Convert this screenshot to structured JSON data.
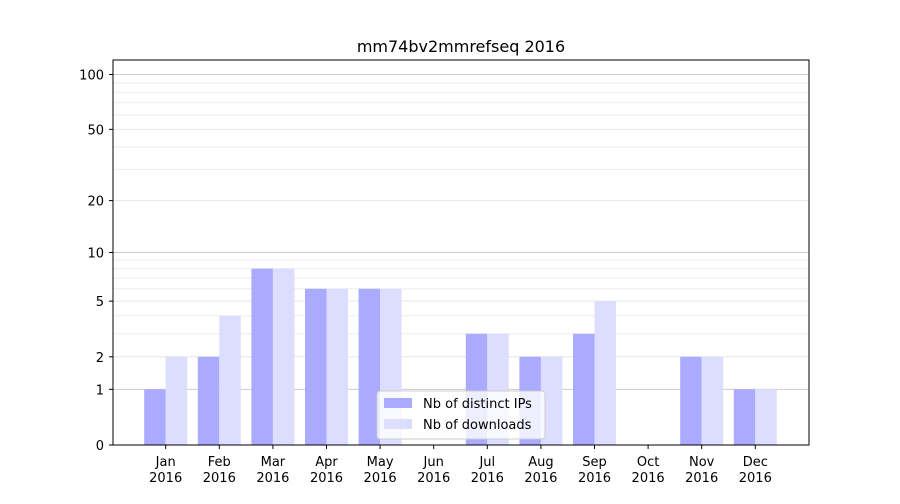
{
  "chart_data": {
    "type": "bar",
    "title": "mm74bv2mmrefseq 2016",
    "xlabel": "",
    "ylabel": "",
    "yscale": "symlog",
    "ylim": [
      0,
      120
    ],
    "yticks": [
      0,
      1,
      2,
      5,
      10,
      20,
      50,
      100
    ],
    "grid": true,
    "legend_position": "lower-center",
    "categories": [
      [
        "Jan",
        "2016"
      ],
      [
        "Feb",
        "2016"
      ],
      [
        "Mar",
        "2016"
      ],
      [
        "Apr",
        "2016"
      ],
      [
        "May",
        "2016"
      ],
      [
        "Jun",
        "2016"
      ],
      [
        "Jul",
        "2016"
      ],
      [
        "Aug",
        "2016"
      ],
      [
        "Sep",
        "2016"
      ],
      [
        "Oct",
        "2016"
      ],
      [
        "Nov",
        "2016"
      ],
      [
        "Dec",
        "2016"
      ]
    ],
    "series": [
      {
        "name": "Nb of distinct IPs",
        "color": "#aaaaff",
        "values": [
          1,
          2,
          8,
          6,
          6,
          0,
          3,
          2,
          3,
          0,
          2,
          1
        ]
      },
      {
        "name": "Nb of downloads",
        "color": "#ddddff",
        "values": [
          2,
          4,
          8,
          6,
          6,
          0,
          3,
          2,
          5,
          0,
          2,
          1
        ]
      }
    ]
  }
}
